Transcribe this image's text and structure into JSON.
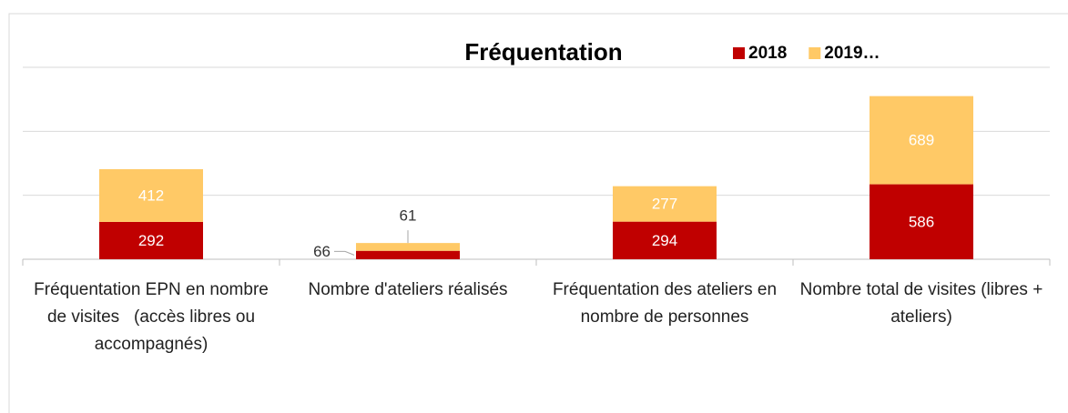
{
  "chart_data": {
    "type": "stacked-bar",
    "title": "Fréquentation",
    "categories": [
      "Fréquentation EPN en nombre de visites   (accès libres ou accompagnés)",
      "Nombre d'ateliers réalisés",
      "Fréquentation des ateliers en nombre de personnes",
      "Nombre total de visites (libres + ateliers)"
    ],
    "series": [
      {
        "name": "2018",
        "color": "#c00000",
        "values": [
          292,
          66,
          294,
          586
        ]
      },
      {
        "name": "2019…",
        "color": "#ffc966",
        "values": [
          412,
          61,
          277,
          689
        ]
      }
    ],
    "ylim": [
      0,
      1500
    ],
    "yticks": [
      0,
      500,
      1000,
      1500
    ],
    "grid": true,
    "legend": "top-right"
  }
}
